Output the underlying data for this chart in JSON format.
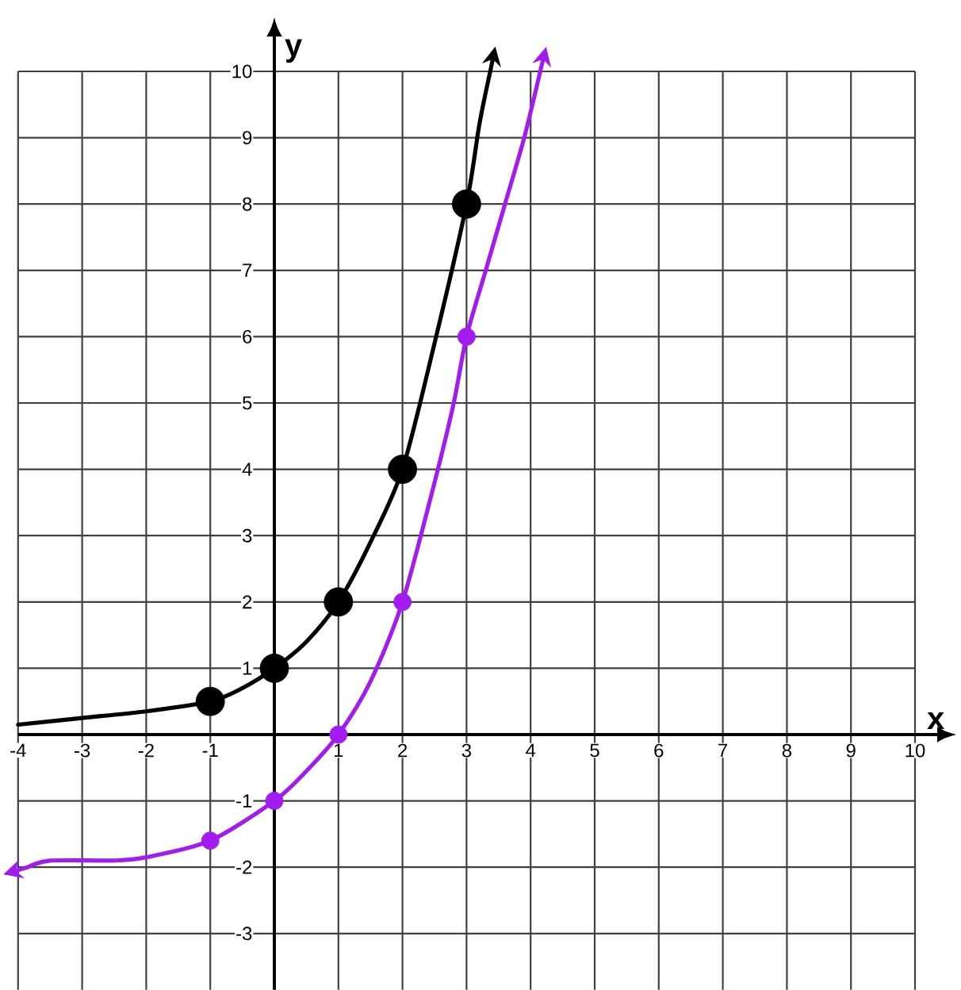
{
  "chart_data": {
    "type": "line",
    "xlabel": "x",
    "ylabel": "y",
    "xlim": [
      -4,
      10
    ],
    "ylim": [
      -3.85,
      10
    ],
    "xticks": [
      -4,
      -3,
      -2,
      -1,
      {
        "value": 0,
        "label": null
      },
      1,
      2,
      3,
      4,
      5,
      6,
      7,
      8,
      9,
      10
    ],
    "yticks": [
      -3,
      -2,
      -1,
      {
        "value": 0,
        "label": null
      },
      1,
      2,
      3,
      4,
      5,
      6,
      7,
      8,
      9,
      10
    ],
    "grid": true,
    "series": [
      {
        "color": "#000000",
        "marker": "none",
        "x": [
          -4,
          -3,
          -2,
          -1,
          -0.5,
          0,
          0.5,
          1,
          1.5,
          2,
          2.5,
          3,
          3.2,
          3.37
        ],
        "values": [
          0.15,
          0.25,
          0.35,
          0.5,
          0.7,
          1,
          1.4,
          2,
          2.9,
          4,
          5.9,
          8,
          9.2,
          10
        ]
      },
      {
        "type": "scatter",
        "color": "#000000",
        "marker": "circle",
        "x": [
          -1,
          0,
          1,
          2,
          3
        ],
        "values": [
          0.5,
          1,
          2,
          4,
          8
        ]
      },
      {
        "color": "#a21cf0",
        "marker": "none",
        "x": [
          -3.85,
          -3.5,
          -2.5,
          -2,
          -1,
          0,
          0.5,
          1,
          1.5,
          2,
          2.5,
          2.8,
          3,
          3.3,
          3.6,
          3.9,
          4.15
        ],
        "values": [
          -2,
          -1.9,
          -1.9,
          -1.85,
          -1.6,
          -1,
          -0.55,
          0,
          0.8,
          2,
          3.8,
          5,
          6,
          7,
          8,
          9,
          10
        ]
      },
      {
        "type": "scatter",
        "color": "#a21cf0",
        "marker": "circle",
        "x": [
          -1,
          0,
          1,
          2,
          3
        ],
        "values": [
          -1.6,
          -1,
          0,
          2,
          6
        ]
      }
    ]
  }
}
